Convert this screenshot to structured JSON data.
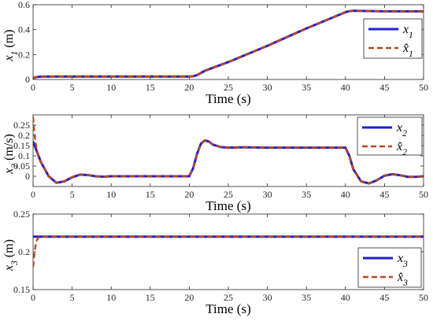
{
  "chart_data": [
    {
      "type": "line",
      "xlabel": "Time (s)",
      "ylabel": "x_1 (m)",
      "xlim": [
        0,
        50
      ],
      "ylim": [
        0,
        0.6
      ],
      "xticks": [
        0,
        5,
        10,
        15,
        20,
        25,
        30,
        35,
        40,
        45,
        50
      ],
      "yticks": [
        0,
        0.2,
        0.4,
        0.6
      ],
      "grid": false,
      "legend_position": "top-right",
      "series": [
        {
          "name": "x1",
          "legend_label": "x_1",
          "color": "#1f1fd0",
          "style": "solid",
          "x": [
            0,
            0.3,
            1,
            3,
            5,
            10,
            15,
            20,
            20.5,
            21,
            22,
            25,
            30,
            35,
            40,
            40.5,
            41,
            42,
            45,
            50
          ],
          "y": [
            0.01,
            0.018,
            0.023,
            0.024,
            0.024,
            0.024,
            0.024,
            0.024,
            0.026,
            0.035,
            0.07,
            0.14,
            0.27,
            0.41,
            0.54,
            0.548,
            0.552,
            0.55,
            0.547,
            0.547
          ]
        },
        {
          "name": "x1hat",
          "legend_label": "x̂_1",
          "color": "#b8461e",
          "style": "dashed",
          "x": [
            0,
            0.3,
            1,
            3,
            5,
            10,
            15,
            20,
            20.5,
            21,
            22,
            25,
            30,
            35,
            40,
            40.5,
            41,
            42,
            45,
            50
          ],
          "y": [
            0.005,
            0.02,
            0.023,
            0.024,
            0.024,
            0.024,
            0.024,
            0.024,
            0.026,
            0.035,
            0.07,
            0.14,
            0.27,
            0.41,
            0.54,
            0.548,
            0.552,
            0.55,
            0.547,
            0.547
          ]
        }
      ]
    },
    {
      "type": "line",
      "xlabel": "Time (s)",
      "ylabel": "x_2 (m/s)",
      "xlim": [
        0,
        50
      ],
      "ylim": [
        -0.05,
        0.3
      ],
      "xticks": [
        0,
        5,
        10,
        15,
        20,
        25,
        30,
        35,
        40,
        45,
        50
      ],
      "yticks": [
        0,
        0.05,
        0.1,
        0.15,
        0.2,
        0.25
      ],
      "grid": false,
      "legend_position": "top-right",
      "series": [
        {
          "name": "x2",
          "legend_label": "x_2",
          "color": "#1f1fd0",
          "style": "solid",
          "x": [
            0,
            0.5,
            1,
            2,
            3,
            4,
            5,
            6,
            7,
            8,
            9,
            10,
            15,
            20,
            20.5,
            21,
            21.5,
            22,
            22.5,
            23,
            24,
            25,
            27,
            30,
            35,
            40,
            40.5,
            41,
            42,
            43,
            44,
            45,
            46,
            47,
            48,
            49,
            50
          ],
          "y": [
            0.17,
            0.12,
            0.07,
            0.0,
            -0.032,
            -0.025,
            -0.005,
            0.008,
            0.006,
            0.0,
            -0.002,
            0.0,
            0.0,
            0.0,
            0.04,
            0.11,
            0.16,
            0.175,
            0.17,
            0.155,
            0.143,
            0.14,
            0.142,
            0.14,
            0.14,
            0.14,
            0.1,
            0.035,
            -0.025,
            -0.035,
            -0.02,
            0.003,
            0.01,
            0.005,
            -0.003,
            -0.003,
            0.0
          ]
        },
        {
          "name": "x2hat",
          "legend_label": "x̂_2",
          "color": "#b8461e",
          "style": "dashed",
          "x": [
            0,
            0.2,
            0.5,
            1,
            2,
            3,
            4,
            5,
            6,
            7,
            8,
            9,
            10,
            15,
            20,
            20.5,
            21,
            21.5,
            22,
            22.5,
            23,
            24,
            25,
            27,
            30,
            35,
            40,
            40.5,
            41,
            42,
            43,
            44,
            45,
            46,
            47,
            48,
            49,
            50
          ],
          "y": [
            0.29,
            0.2,
            0.12,
            0.07,
            0.0,
            -0.032,
            -0.025,
            -0.005,
            0.008,
            0.006,
            0.0,
            -0.002,
            0.0,
            0.0,
            0.0,
            0.04,
            0.11,
            0.16,
            0.175,
            0.17,
            0.155,
            0.143,
            0.14,
            0.142,
            0.14,
            0.14,
            0.14,
            0.1,
            0.035,
            -0.025,
            -0.035,
            -0.02,
            0.003,
            0.01,
            0.005,
            -0.003,
            -0.003,
            0.0
          ]
        }
      ]
    },
    {
      "type": "line",
      "xlabel": "Time (s)",
      "ylabel": "x_3 (m)",
      "xlim": [
        0,
        50
      ],
      "ylim": [
        0.15,
        0.25
      ],
      "xticks": [
        0,
        5,
        10,
        15,
        20,
        25,
        30,
        35,
        40,
        45,
        50
      ],
      "yticks": [
        0.15,
        0.2,
        0.25
      ],
      "grid": false,
      "legend_position": "bottom-right",
      "series": [
        {
          "name": "x3",
          "legend_label": "x_3",
          "color": "#1f1fd0",
          "style": "solid",
          "x": [
            0,
            50
          ],
          "y": [
            0.22,
            0.22
          ]
        },
        {
          "name": "x3hat",
          "legend_label": "x̂_3",
          "color": "#b8461e",
          "style": "dashed",
          "x": [
            0,
            0.2,
            0.4,
            0.7,
            1,
            50
          ],
          "y": [
            0.18,
            0.2,
            0.214,
            0.219,
            0.22,
            0.22
          ]
        }
      ]
    }
  ]
}
